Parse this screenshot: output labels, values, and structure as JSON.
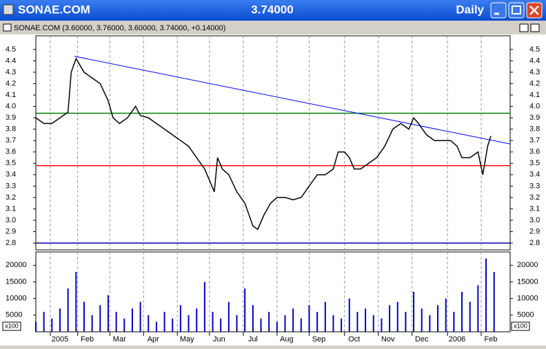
{
  "window": {
    "title": "SONAE.COM",
    "price": "3.74000",
    "period": "Daily"
  },
  "chart_data": [
    {
      "type": "line",
      "title": "SONAE.COM (3.60000, 3.76000, 3.60000, 3.74000, +0.14000)",
      "xlim": [
        0,
        295
      ],
      "ylim": [
        2.74,
        4.62
      ],
      "xticks": [
        {
          "value": 9,
          "label": "2005"
        },
        {
          "value": 26,
          "label": "Feb"
        },
        {
          "value": 46,
          "label": "Mar"
        },
        {
          "value": 67,
          "label": "Apr"
        },
        {
          "value": 88,
          "label": "May"
        },
        {
          "value": 108,
          "label": "Jun"
        },
        {
          "value": 129,
          "label": "Jul"
        },
        {
          "value": 150,
          "label": "Aug"
        },
        {
          "value": 170,
          "label": "Sep"
        },
        {
          "value": 192,
          "label": "Oct"
        },
        {
          "value": 213,
          "label": "Nov"
        },
        {
          "value": 234,
          "label": "Dec"
        },
        {
          "value": 256,
          "label": "2006"
        },
        {
          "value": 277,
          "label": "Feb"
        }
      ],
      "yticks": [
        2.8,
        2.9,
        {
          "value": 3,
          "label": "3.0"
        },
        3.1,
        3.2,
        3.3,
        3.4,
        3.5,
        3.6,
        3.7,
        3.8,
        3.9,
        {
          "value": 4,
          "label": "4.0"
        },
        4.1,
        4.2,
        4.3,
        4.4,
        4.5
      ],
      "grid": true,
      "x": [
        0,
        5,
        10,
        15,
        20,
        22,
        25,
        30,
        35,
        40,
        45,
        48,
        52,
        57,
        62,
        65,
        70,
        75,
        80,
        85,
        90,
        95,
        100,
        105,
        108,
        111,
        113,
        116,
        120,
        125,
        130,
        135,
        138,
        142,
        146,
        150,
        155,
        160,
        165,
        170,
        175,
        180,
        185,
        188,
        192,
        195,
        198,
        202,
        207,
        212,
        217,
        222,
        227,
        232,
        235,
        238,
        243,
        248,
        253,
        258,
        262,
        265,
        270,
        275,
        278,
        281,
        283
      ],
      "series": [
        {
          "name": "SONAE.COM",
          "color": "#000000",
          "values": [
            3.9,
            3.85,
            3.85,
            3.9,
            3.95,
            4.3,
            4.42,
            4.3,
            4.25,
            4.2,
            4.05,
            3.9,
            3.85,
            3.9,
            4.0,
            3.92,
            3.9,
            3.85,
            3.8,
            3.75,
            3.7,
            3.65,
            3.55,
            3.45,
            3.35,
            3.25,
            3.55,
            3.45,
            3.4,
            3.25,
            3.15,
            2.95,
            2.92,
            3.05,
            3.15,
            3.2,
            3.2,
            3.18,
            3.2,
            3.3,
            3.4,
            3.4,
            3.45,
            3.6,
            3.6,
            3.55,
            3.45,
            3.45,
            3.5,
            3.55,
            3.65,
            3.8,
            3.85,
            3.8,
            3.9,
            3.85,
            3.75,
            3.7,
            3.7,
            3.7,
            3.65,
            3.55,
            3.55,
            3.6,
            3.4,
            3.65,
            3.74
          ]
        }
      ],
      "hlines": [
        {
          "y": 3.94,
          "color": "#008000"
        },
        {
          "y": 3.48,
          "color": "#ff0000"
        },
        {
          "y": 2.8,
          "color": "#0000a0"
        }
      ],
      "trendline": {
        "x": [
          24,
          295
        ],
        "y": [
          4.44,
          3.67
        ],
        "color": "#0000ff"
      }
    },
    {
      "type": "bar",
      "unit": "x100",
      "xlim": [
        0,
        295
      ],
      "ylim": [
        0,
        24000
      ],
      "yticks": [
        5000,
        10000,
        15000,
        20000
      ],
      "color": "#0000c0",
      "x": [
        0,
        5,
        10,
        15,
        20,
        25,
        30,
        35,
        40,
        45,
        50,
        55,
        60,
        65,
        70,
        75,
        80,
        85,
        90,
        95,
        100,
        105,
        110,
        115,
        120,
        125,
        130,
        135,
        140,
        145,
        150,
        155,
        160,
        165,
        170,
        175,
        180,
        185,
        190,
        195,
        200,
        205,
        210,
        215,
        220,
        225,
        230,
        235,
        240,
        245,
        250,
        255,
        260,
        265,
        270,
        275,
        280,
        285
      ],
      "values": [
        3000,
        6000,
        4000,
        7000,
        13000,
        18000,
        9000,
        5000,
        8000,
        11000,
        6000,
        4000,
        7000,
        9000,
        5000,
        3000,
        6000,
        4000,
        8000,
        5000,
        7000,
        15000,
        6000,
        4000,
        9000,
        5000,
        13000,
        8000,
        4000,
        6000,
        3000,
        5000,
        7000,
        4000,
        8000,
        6000,
        9000,
        5000,
        4000,
        10000,
        6000,
        7000,
        5000,
        4000,
        8000,
        9000,
        6000,
        12000,
        7000,
        5000,
        8000,
        10000,
        6000,
        12000,
        9000,
        14000,
        22000,
        18000
      ]
    }
  ]
}
